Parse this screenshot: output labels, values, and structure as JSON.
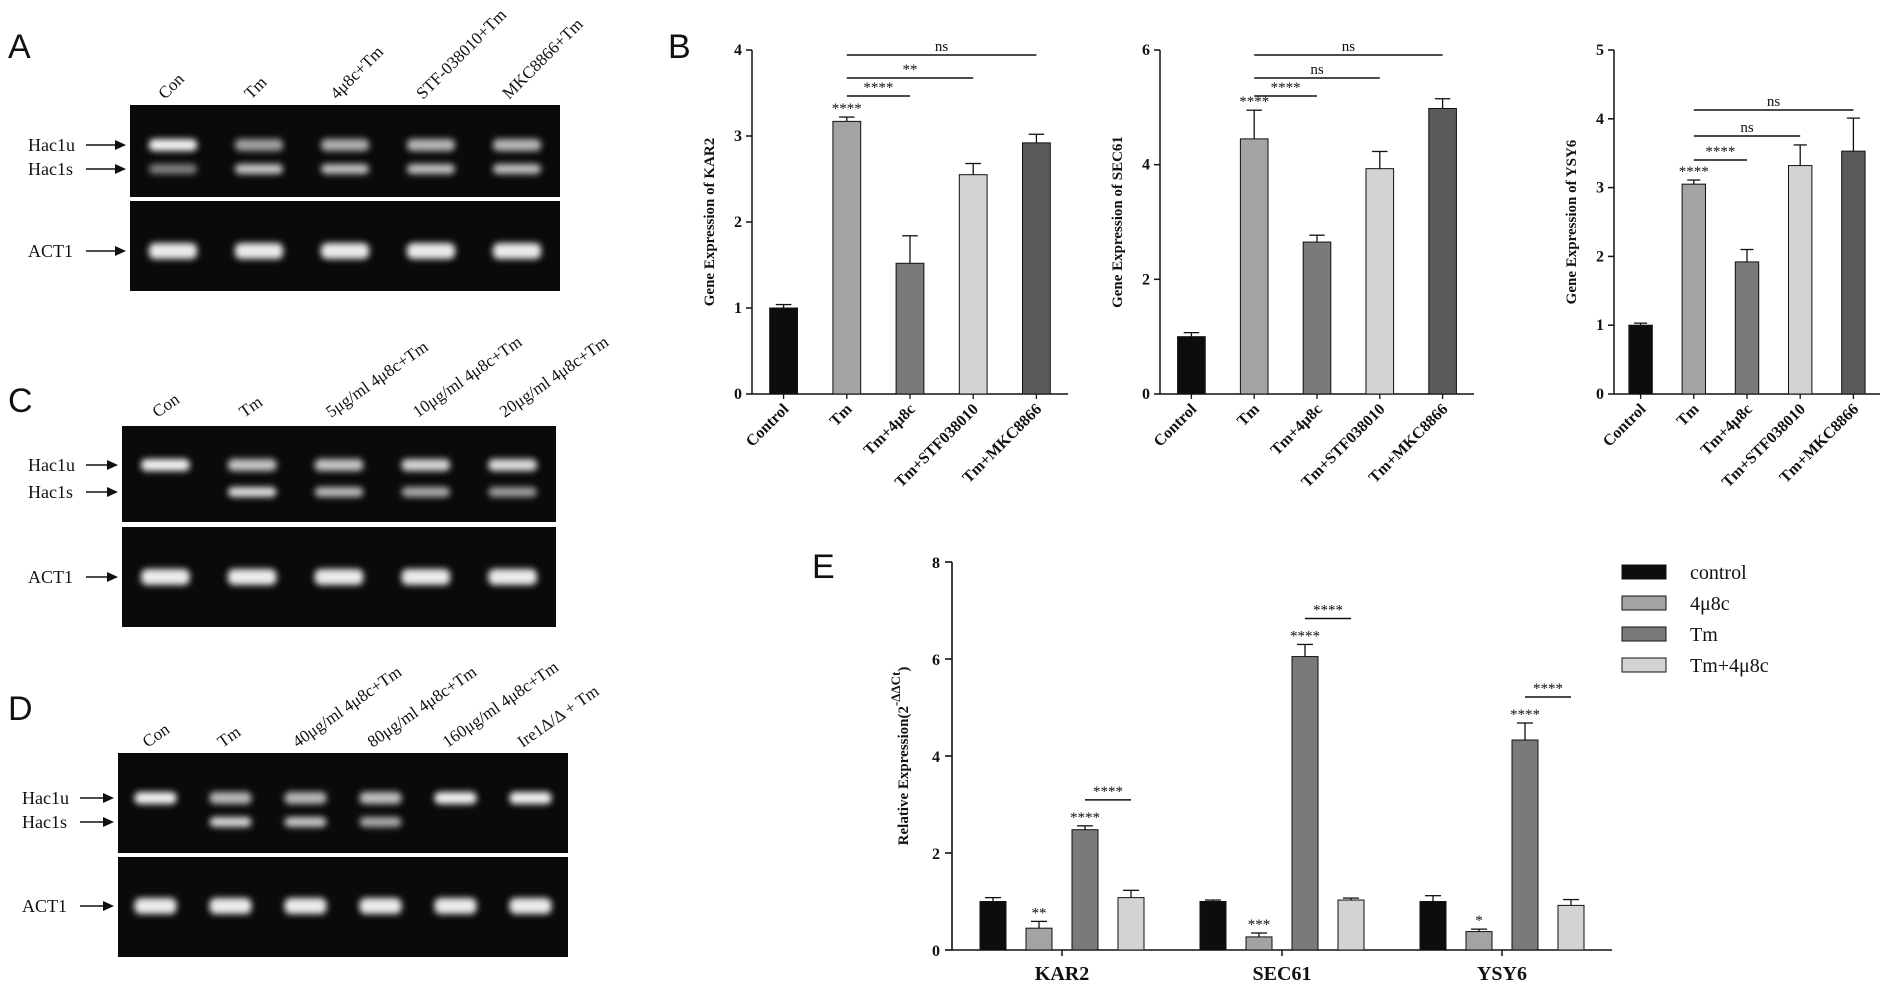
{
  "panels": {
    "A": "A",
    "B": "B",
    "C": "C",
    "D": "D",
    "E": "E"
  },
  "gels": [
    {
      "id": "A",
      "lanes": [
        "Con",
        "Tm",
        "4μ8c+Tm",
        "STF-038010+Tm",
        "MKC8866+Tm"
      ],
      "band_labels": [
        "Hac1u",
        "Hac1s",
        "ACT1"
      ],
      "band_pattern": [
        [
          1,
          0.3
        ],
        [
          0.45,
          0.8
        ],
        [
          0.55,
          0.75
        ],
        [
          0.6,
          0.75
        ],
        [
          0.6,
          0.75
        ]
      ]
    },
    {
      "id": "C",
      "lanes": [
        "Con",
        "Tm",
        "5μg/ml 4μ8c+Tm",
        "10μg/ml 4μ8c+Tm",
        "20μg/ml 4μ8c+Tm"
      ],
      "band_labels": [
        "Hac1u",
        "Hac1s",
        "ACT1"
      ],
      "band_pattern": [
        [
          1,
          0
        ],
        [
          0.7,
          0.95
        ],
        [
          0.7,
          0.7
        ],
        [
          0.8,
          0.6
        ],
        [
          0.85,
          0.5
        ]
      ]
    },
    {
      "id": "D",
      "lanes": [
        "Con",
        "Tm",
        "40μg/ml 4μ8c+Tm",
        "80μg/ml 4μ8c+Tm",
        "160μg/ml 4μ8c+Tm",
        "Ire1Δ/Δ + Tm"
      ],
      "band_labels": [
        "Hac1u",
        "Hac1s",
        "ACT1"
      ],
      "band_pattern": [
        [
          1,
          0
        ],
        [
          0.6,
          0.9
        ],
        [
          0.6,
          0.8
        ],
        [
          0.65,
          0.6
        ],
        [
          1,
          0
        ],
        [
          1,
          0
        ]
      ]
    }
  ],
  "chart_data": [
    {
      "type": "bar",
      "ylabel": "Gene Expression of KAR2",
      "ylim": [
        0,
        4
      ],
      "yticks": [
        0,
        1,
        2,
        3,
        4
      ],
      "categories": [
        "Control",
        "Tm",
        "Tm+4μ8c",
        "Tm+STF038010",
        "Tm+MKC8866"
      ],
      "values": [
        1.0,
        3.17,
        1.52,
        2.55,
        2.92
      ],
      "errors": [
        0.04,
        0.05,
        0.32,
        0.13,
        0.1
      ],
      "bar_colors": [
        "#0d0d0d",
        "#a3a3a3",
        "#7a7a7a",
        "#d3d3d3",
        "#5a5a5a"
      ],
      "sig_on_bar": [
        "",
        "****",
        "",
        "",
        ""
      ],
      "brackets": [
        {
          "from": 1,
          "to": 2,
          "label": "****"
        },
        {
          "from": 1,
          "to": 3,
          "label": "**"
        },
        {
          "from": 1,
          "to": 4,
          "label": "ns"
        }
      ]
    },
    {
      "type": "bar",
      "ylabel": "Gene Expression of SEC61",
      "ylim": [
        0,
        6
      ],
      "yticks": [
        0,
        2,
        4,
        6
      ],
      "categories": [
        "Control",
        "Tm",
        "Tm+4μ8c",
        "Tm+STF038010",
        "Tm+MKC8866"
      ],
      "values": [
        1.0,
        4.45,
        2.65,
        3.93,
        4.98
      ],
      "errors": [
        0.07,
        0.5,
        0.12,
        0.3,
        0.17
      ],
      "bar_colors": [
        "#0d0d0d",
        "#a3a3a3",
        "#7a7a7a",
        "#d3d3d3",
        "#5a5a5a"
      ],
      "sig_on_bar": [
        "",
        "****",
        "",
        "",
        ""
      ],
      "brackets": [
        {
          "from": 1,
          "to": 2,
          "label": "****"
        },
        {
          "from": 1,
          "to": 3,
          "label": "ns"
        },
        {
          "from": 1,
          "to": 4,
          "label": "ns"
        }
      ]
    },
    {
      "type": "bar",
      "ylabel": "Gene Expression of YSY6",
      "ylim": [
        0,
        5
      ],
      "yticks": [
        0,
        1,
        2,
        3,
        4,
        5
      ],
      "categories": [
        "Control",
        "Tm",
        "Tm+4μ8c",
        "Tm+STF038010",
        "Tm+MKC8866"
      ],
      "values": [
        1.0,
        3.05,
        1.92,
        3.32,
        3.53
      ],
      "errors": [
        0.03,
        0.06,
        0.18,
        0.3,
        0.48
      ],
      "bar_colors": [
        "#0d0d0d",
        "#a3a3a3",
        "#7a7a7a",
        "#d3d3d3",
        "#5a5a5a"
      ],
      "sig_on_bar": [
        "",
        "****",
        "",
        "",
        ""
      ],
      "brackets": [
        {
          "from": 1,
          "to": 2,
          "label": "****"
        },
        {
          "from": 1,
          "to": 3,
          "label": "ns"
        },
        {
          "from": 1,
          "to": 4,
          "label": "ns"
        }
      ]
    },
    {
      "type": "bar",
      "ylabel": "Relative Expression(2",
      "ylabel_sup": "-ΔΔCt",
      "ylabel_close": ")",
      "ylim": [
        0,
        8
      ],
      "yticks": [
        0,
        2,
        4,
        6,
        8
      ],
      "categories": [
        "KAR2",
        "SEC61",
        "YSY6"
      ],
      "series": [
        {
          "name": "control",
          "color": "#0d0d0d",
          "values": [
            1.0,
            1.0,
            1.0
          ],
          "errors": [
            0.08,
            0.03,
            0.12
          ],
          "sig": [
            "",
            "",
            ""
          ]
        },
        {
          "name": "4μ8c",
          "color": "#a3a3a3",
          "values": [
            0.45,
            0.27,
            0.38
          ],
          "errors": [
            0.14,
            0.08,
            0.05
          ],
          "sig": [
            "**",
            "***",
            "*"
          ]
        },
        {
          "name": "Tm",
          "color": "#7a7a7a",
          "values": [
            2.48,
            6.05,
            4.33
          ],
          "errors": [
            0.08,
            0.25,
            0.35
          ],
          "sig": [
            "****",
            "****",
            "****"
          ]
        },
        {
          "name": "Tm+4μ8c",
          "color": "#d3d3d3",
          "values": [
            1.08,
            1.03,
            0.92
          ],
          "errors": [
            0.15,
            0.04,
            0.12
          ],
          "sig": [
            "",
            "",
            ""
          ]
        }
      ],
      "brackets": [
        {
          "category": 0,
          "from": 2,
          "to": 3,
          "label": "****"
        },
        {
          "category": 1,
          "from": 2,
          "to": 3,
          "label": "****"
        },
        {
          "category": 2,
          "from": 2,
          "to": 3,
          "label": "****"
        }
      ],
      "legend": "top-right"
    }
  ]
}
